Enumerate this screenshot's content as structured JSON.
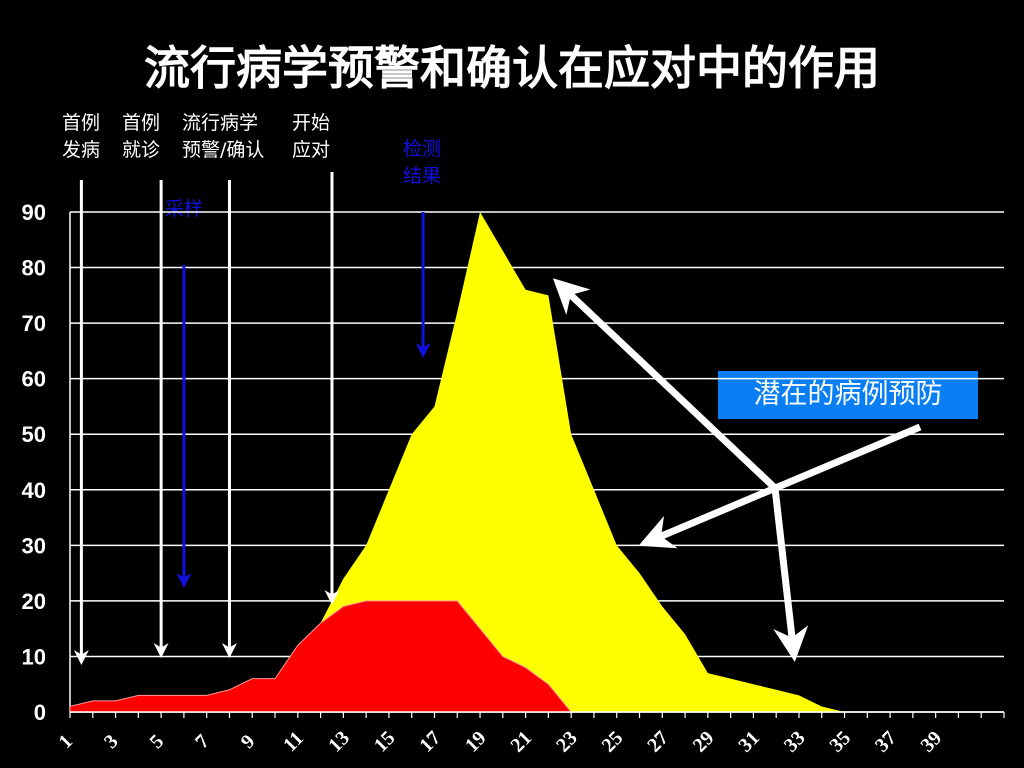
{
  "title": "流行病学预警和确认在应对中的作用",
  "events": [
    {
      "label": "首例\n发病",
      "x": 1.5,
      "color": "white"
    },
    {
      "label": "首例\n就诊",
      "x": 5,
      "color": "white"
    },
    {
      "label": "流行病学\n预警/确认",
      "x": 8,
      "color": "white"
    },
    {
      "label": "开始\n应对",
      "x": 12.5,
      "color": "white"
    },
    {
      "label": "检测\n结果",
      "x": 16.5,
      "color": "blue"
    },
    {
      "label": "采样",
      "x": 6,
      "color": "blue"
    }
  ],
  "callout": "潜在的病例预防",
  "colors": {
    "background": "#000000",
    "total": "#ffff00",
    "with_response": "#ff0000",
    "callout": "#0a7ff5",
    "blue_arrow": "#1010e0"
  },
  "chart_data": {
    "type": "area",
    "title": "",
    "xlabel": "",
    "ylabel": "",
    "ylim": [
      0,
      90
    ],
    "xlim": [
      1,
      42
    ],
    "yticks": [
      0,
      10,
      20,
      30,
      40,
      50,
      60,
      70,
      80,
      90
    ],
    "xtick_labels": [
      "1",
      "3",
      "5",
      "7",
      "9",
      "11",
      "13",
      "15",
      "17",
      "19",
      "21",
      "23",
      "25",
      "27",
      "29",
      "31",
      "33",
      "35",
      "37",
      "39"
    ],
    "grid": true,
    "series": [
      {
        "x": [
          1,
          2,
          3,
          4,
          5,
          6,
          7,
          8,
          9,
          10,
          11,
          12,
          13,
          14,
          15,
          16,
          17,
          18,
          19,
          20,
          21,
          22,
          23,
          24,
          25,
          26,
          27,
          28,
          29,
          30,
          31,
          32,
          33,
          34,
          35,
          36
        ],
        "values": [
          1,
          2,
          2,
          3,
          3,
          3,
          3,
          4,
          6,
          6,
          12,
          16,
          24,
          30,
          40,
          50,
          55,
          72,
          90,
          83,
          76,
          75,
          50,
          40,
          30,
          25,
          19,
          14,
          7,
          6,
          5,
          4,
          3,
          1,
          0,
          0
        ]
      },
      {
        "x": [
          1,
          2,
          3,
          4,
          5,
          6,
          7,
          8,
          9,
          10,
          11,
          12,
          13,
          14,
          15,
          16,
          17,
          18,
          19,
          20,
          21,
          22,
          23
        ],
        "values": [
          1,
          2,
          2,
          3,
          3,
          3,
          3,
          4,
          6,
          6,
          12,
          16,
          19,
          20,
          20,
          20,
          20,
          20,
          15,
          10,
          8,
          5,
          0
        ]
      }
    ]
  }
}
